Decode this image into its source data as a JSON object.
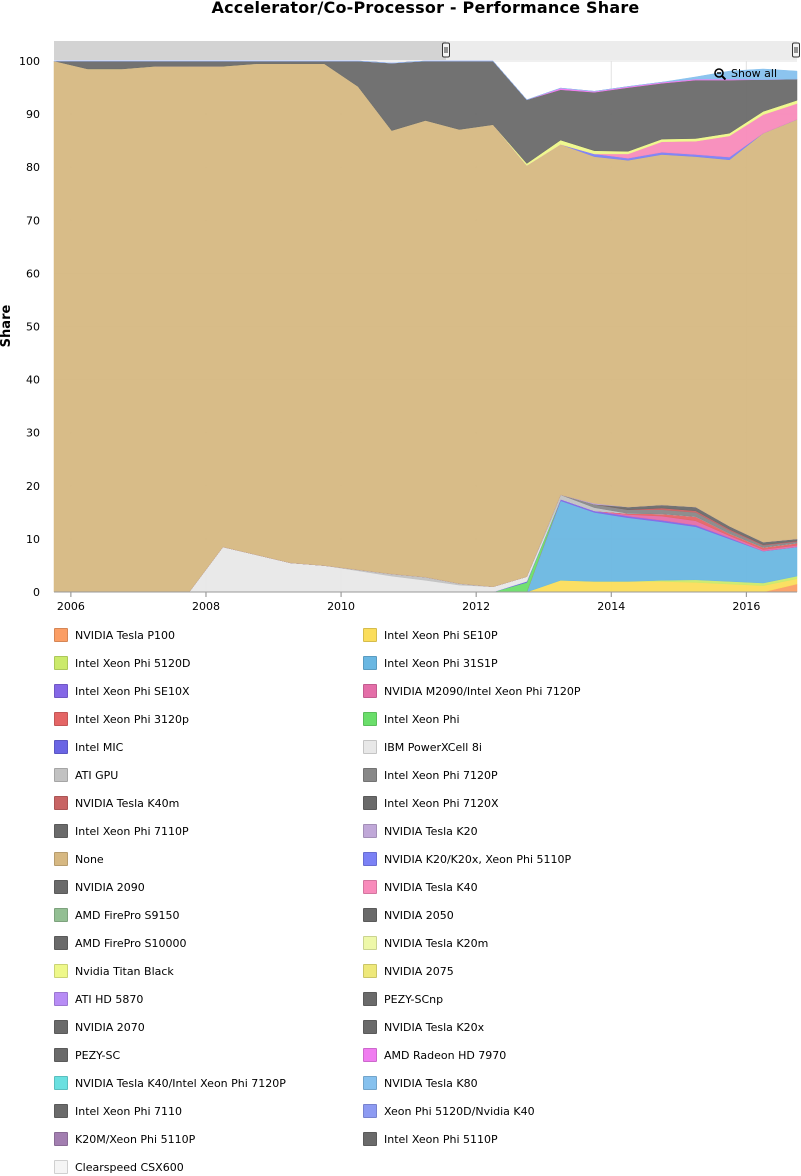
{
  "zoom": {
    "show_all_label": "Show all"
  },
  "chart_data": {
    "type": "area",
    "stacked": true,
    "title": "Accelerator/Co-Processor - Performance Share",
    "ylabel": "Share",
    "xlabel": "",
    "ylim": [
      0,
      100
    ],
    "xlim": [
      2005.75,
      2016.75
    ],
    "yticks": [
      0,
      10,
      20,
      30,
      40,
      50,
      60,
      70,
      80,
      90,
      100
    ],
    "xticks": [
      2006,
      2008,
      2010,
      2012,
      2014,
      2016
    ],
    "grid": true,
    "legend_position": "bottom",
    "x": [
      2005.75,
      2006.25,
      2006.75,
      2007.25,
      2007.75,
      2008.25,
      2008.75,
      2009.25,
      2009.75,
      2010.25,
      2010.75,
      2011.25,
      2011.75,
      2012.25,
      2012.75,
      2013.25,
      2013.75,
      2014.25,
      2014.75,
      2015.25,
      2015.75,
      2016.25,
      2016.75
    ],
    "series": [
      {
        "name": "NVIDIA Tesla P100",
        "color": "#fb9e65",
        "values": [
          0,
          0,
          0,
          0,
          0,
          0,
          0,
          0,
          0,
          0,
          0,
          0,
          0,
          0,
          0,
          0,
          0,
          0,
          0,
          0,
          0,
          0,
          1.5
        ]
      },
      {
        "name": "Intel Xeon Phi SE10P",
        "color": "#fbdd5b",
        "values": [
          0,
          0,
          0,
          0,
          0,
          0,
          0,
          0,
          0,
          0,
          0,
          0,
          0,
          0,
          0,
          2.2,
          2.0,
          2.0,
          2.0,
          1.8,
          1.5,
          1.2,
          1.0
        ]
      },
      {
        "name": "Intel Xeon Phi 5120D",
        "color": "#cbea6b",
        "values": [
          0,
          0,
          0,
          0,
          0,
          0,
          0,
          0,
          0,
          0,
          0,
          0,
          0,
          0,
          0,
          0,
          0,
          0,
          0.2,
          0.5,
          0.5,
          0.5,
          0.5
        ]
      },
      {
        "name": "Intel Xeon Phi 31S1P",
        "color": "#6ab7e2",
        "values": [
          0,
          0,
          0,
          0,
          0,
          0,
          0,
          0,
          0,
          0,
          0,
          0,
          0,
          0,
          0,
          15,
          13,
          12,
          11,
          10,
          8,
          6,
          5.5
        ]
      },
      {
        "name": "Intel Xeon Phi SE10X",
        "color": "#8467e6",
        "values": [
          0,
          0,
          0,
          0,
          0,
          0,
          0,
          0,
          0,
          0,
          0,
          0,
          0,
          0,
          0,
          0.3,
          0.3,
          0.3,
          0.3,
          0.3,
          0.2,
          0,
          0
        ]
      },
      {
        "name": "NVIDIA M2090/Intel Xeon Phi 7120P",
        "color": "#e46ea8",
        "values": [
          0,
          0,
          0,
          0,
          0,
          0,
          0,
          0,
          0,
          0,
          0,
          0,
          0,
          0,
          0,
          0,
          0,
          0.3,
          0.8,
          0.8,
          0.4,
          0.3,
          0.3
        ]
      },
      {
        "name": "Intel Xeon Phi 3120p",
        "color": "#e46565",
        "values": [
          0,
          0,
          0,
          0,
          0,
          0,
          0,
          0,
          0,
          0,
          0,
          0,
          0,
          0,
          0,
          0,
          0,
          0.2,
          0.4,
          0.8,
          0.4,
          0.4,
          0.4
        ]
      },
      {
        "name": "Intel Xeon Phi",
        "color": "#6ade6a",
        "values": [
          0,
          0,
          0,
          0,
          0,
          0,
          0,
          0,
          0,
          0,
          0,
          0,
          0,
          0,
          1.8,
          0,
          0,
          0,
          0,
          0,
          0,
          0,
          0
        ]
      },
      {
        "name": "Intel MIC",
        "color": "#6a65e4",
        "values": [
          0,
          0,
          0,
          0,
          0,
          0,
          0,
          0,
          0,
          0,
          0,
          0,
          0,
          0,
          0.2,
          0,
          0,
          0,
          0,
          0,
          0,
          0,
          0
        ]
      },
      {
        "name": "IBM PowerXCell 8i",
        "color": "#e8e8e8",
        "values": [
          0,
          0,
          0,
          0,
          0,
          8.5,
          7,
          5.5,
          5,
          4,
          3,
          2.2,
          1.3,
          1,
          0.9,
          0,
          0,
          0,
          0,
          0,
          0,
          0,
          0
        ]
      },
      {
        "name": "ATI GPU",
        "color": "#c2c2c2",
        "values": [
          0,
          0,
          0,
          0,
          0,
          0,
          0,
          0,
          0,
          0.2,
          0.4,
          0.6,
          0.3,
          0,
          0,
          0.8,
          0.6,
          0,
          0,
          0,
          0,
          0,
          0
        ]
      },
      {
        "name": "Intel Xeon Phi 7120P",
        "color": "#888888",
        "values": [
          0,
          0,
          0,
          0,
          0,
          0,
          0,
          0,
          0,
          0,
          0,
          0,
          0,
          0,
          0,
          0,
          0.6,
          0.7,
          0.8,
          0.8,
          0.6,
          0.4,
          0.3
        ]
      },
      {
        "name": "NVIDIA Tesla K40m",
        "color": "#c86464",
        "values": [
          0,
          0,
          0,
          0,
          0,
          0,
          0,
          0,
          0,
          0,
          0,
          0,
          0,
          0,
          0,
          0,
          0,
          0,
          0.3,
          0.3,
          0.2,
          0.1,
          0.1
        ]
      },
      {
        "name": "Intel Xeon Phi 7120X",
        "color": "#6a6a6a",
        "values": [
          0,
          0,
          0,
          0,
          0,
          0,
          0,
          0,
          0,
          0,
          0,
          0,
          0,
          0,
          0,
          0,
          0,
          0.5,
          0.6,
          0.7,
          0.6,
          0.5,
          0.4
        ]
      },
      {
        "name": "NVIDIA Tesla K20",
        "color": "#c0a8d8",
        "values": [
          0,
          0,
          0,
          0,
          0,
          0,
          0,
          0,
          0,
          0,
          0,
          0,
          0,
          0,
          0,
          0,
          0.2,
          0,
          0,
          0,
          0,
          0,
          0
        ]
      },
      {
        "name": "Intel Xeon Phi 7110P",
        "color": "#6a6a6a",
        "values": [
          0,
          0,
          0,
          0,
          0,
          0,
          0,
          0,
          0,
          0,
          0,
          0,
          0,
          0,
          0,
          0,
          0,
          0,
          0,
          0,
          0,
          0,
          0
        ]
      },
      {
        "name": "None",
        "color": "#d6b882",
        "values": [
          100,
          98.5,
          98.5,
          99,
          99,
          90.5,
          92.5,
          94,
          94.5,
          91,
          83.5,
          86,
          85.5,
          87,
          77.4,
          66,
          65.3,
          65.3,
          66,
          66,
          69,
          77,
          79
        ]
      },
      {
        "name": "NVIDIA K20/K20x, Xeon Phi 5110P",
        "color": "#7b81f5",
        "values": [
          0,
          0,
          0,
          0,
          0,
          0,
          0,
          0,
          0,
          0,
          0,
          0,
          0,
          0,
          0,
          0,
          0.5,
          0.4,
          0.4,
          0.4,
          0.5,
          0,
          0
        ]
      },
      {
        "name": "NVIDIA Tesla K40",
        "color": "#f88bbb",
        "values": [
          0,
          0,
          0,
          0,
          0,
          0,
          0,
          0,
          0,
          0,
          0,
          0,
          0,
          0,
          0,
          0,
          0,
          0.8,
          2.0,
          2.5,
          4.0,
          3.5,
          3.0
        ]
      },
      {
        "name": "NVIDIA 2090",
        "color": "#6a6a6a",
        "values": [
          0,
          0,
          0,
          0,
          0,
          0,
          0,
          0,
          0,
          0,
          0,
          0,
          0,
          0,
          0,
          0,
          0,
          0,
          0,
          0,
          0,
          0,
          0
        ]
      },
      {
        "name": "NVIDIA 2050",
        "color": "#6a6a6a",
        "values": [
          0,
          0,
          0,
          0,
          0,
          0,
          0,
          0,
          0,
          0,
          0,
          0,
          0,
          0,
          0,
          0,
          0,
          0,
          0,
          0,
          0,
          0,
          0
        ]
      },
      {
        "name": "AMD FirePro S9150",
        "color": "#93bf93",
        "values": [
          0,
          0,
          0,
          0,
          0,
          0,
          0,
          0,
          0,
          0,
          0,
          0,
          0,
          0,
          0,
          0,
          0,
          0,
          0,
          0,
          0,
          0,
          0
        ]
      },
      {
        "name": "NVIDIA Tesla K20m",
        "color": "#eef8aa",
        "values": [
          0,
          0,
          0,
          0,
          0,
          0,
          0,
          0,
          0,
          0,
          0,
          0,
          0,
          0,
          0,
          0,
          0,
          0,
          0,
          0,
          0,
          0,
          0
        ]
      },
      {
        "name": "AMD FirePro S10000",
        "color": "#6a6a6a",
        "values": [
          0,
          0,
          0,
          0,
          0,
          0,
          0,
          0,
          0,
          0,
          0,
          0,
          0,
          0,
          0,
          0,
          0,
          0,
          0,
          0,
          0,
          0,
          0
        ]
      },
      {
        "name": "NVIDIA 2075",
        "color": "#eee87a",
        "values": [
          0,
          0,
          0,
          0,
          0,
          0,
          0,
          0,
          0,
          0,
          0,
          0,
          0,
          0,
          0,
          0,
          0,
          0,
          0,
          0,
          0,
          0,
          0
        ]
      },
      {
        "name": "Nvidia Titan Black",
        "color": "#eef88a",
        "values": [
          0,
          0,
          0,
          0,
          0,
          0,
          0,
          0,
          0,
          0,
          0,
          0,
          0,
          0,
          0.4,
          0.8,
          0.6,
          0.5,
          0.5,
          0.5,
          0.5,
          0.6,
          0.6
        ]
      },
      {
        "name": "PEZY-SCnp",
        "color": "#6a6a6a",
        "values": [
          0,
          0,
          0,
          0,
          0,
          0,
          0,
          0,
          0,
          0,
          0,
          0,
          0,
          0,
          0,
          0,
          0,
          0,
          0,
          0,
          0,
          0,
          0
        ]
      },
      {
        "name": "ATI HD 5870",
        "color": "#b78cf5",
        "values": [
          0,
          0,
          0,
          0,
          0,
          0,
          0,
          0,
          0,
          0,
          0,
          0,
          0,
          0,
          0,
          0,
          0,
          0,
          0,
          0,
          0,
          0,
          0
        ]
      },
      {
        "name": "NVIDIA Tesla K20x",
        "color": "#6a6a6a",
        "values": [
          0,
          0,
          0,
          0,
          0,
          0,
          0,
          0,
          0,
          0,
          0,
          0,
          0,
          0,
          0,
          0,
          0,
          0,
          0,
          0,
          0,
          0,
          0
        ]
      },
      {
        "name": "NVIDIA 2070",
        "color": "#6a6a6a",
        "values": [
          0,
          1.5,
          1.5,
          1,
          1,
          1,
          0.5,
          0.5,
          0.5,
          4.8,
          12.7,
          11.2,
          12.9,
          12,
          12,
          9.5,
          11,
          12,
          10.5,
          11,
          10,
          6,
          4
        ]
      },
      {
        "name": "AMD Radeon HD 7970",
        "color": "#f07cf0",
        "values": [
          0,
          0,
          0,
          0,
          0,
          0,
          0,
          0,
          0,
          0,
          0,
          0,
          0,
          0,
          0,
          0.3,
          0.2,
          0.2,
          0.2,
          0.2,
          0.2,
          0,
          0
        ]
      },
      {
        "name": "PEZY-SC",
        "color": "#6a6a6a",
        "values": [
          0,
          0,
          0,
          0,
          0,
          0,
          0,
          0,
          0,
          0,
          0,
          0,
          0,
          0,
          0,
          0,
          0,
          0,
          0,
          0,
          0,
          0,
          0
        ]
      },
      {
        "name": "NVIDIA Tesla K80",
        "color": "#86c1ee",
        "values": [
          0,
          0,
          0,
          0,
          0,
          0,
          0,
          0,
          0,
          0,
          0,
          0,
          0,
          0,
          0,
          0,
          0,
          0,
          0,
          0.4,
          1.5,
          2,
          1.5
        ]
      },
      {
        "name": "NVIDIA Tesla K40/Intel Xeon Phi 7120P",
        "color": "#6ae0e0",
        "values": [
          0,
          0,
          0,
          0,
          0,
          0,
          0,
          0,
          0,
          0,
          0,
          0,
          0,
          0,
          0,
          0,
          0,
          0,
          0,
          0,
          0,
          0,
          0
        ]
      },
      {
        "name": "Xeon Phi 5120D/Nvidia K40",
        "color": "#8d9bf2",
        "values": [
          0,
          0,
          0,
          0,
          0,
          0,
          0,
          0,
          0,
          0,
          0,
          0,
          0,
          0,
          0,
          0,
          0,
          0,
          0,
          0,
          0,
          0,
          0
        ]
      },
      {
        "name": "Intel Xeon Phi 7110",
        "color": "#6a6a6a",
        "values": [
          0,
          0,
          0,
          0,
          0,
          0,
          0,
          0,
          0,
          0,
          0,
          0,
          0,
          0,
          0,
          0,
          0,
          0,
          0,
          0,
          0,
          0,
          0
        ]
      },
      {
        "name": "Intel Xeon Phi 5110P",
        "color": "#6a6a6a",
        "values": [
          0,
          0,
          0,
          0,
          0,
          0,
          0,
          0,
          0,
          0,
          0,
          0,
          0,
          0,
          0,
          0,
          0,
          0,
          0,
          0,
          0,
          0,
          0
        ]
      },
      {
        "name": "K20M/Xeon Phi 5110P",
        "color": "#a27eb0",
        "values": [
          0,
          0,
          0,
          0,
          0,
          0,
          0,
          0,
          0,
          0,
          0,
          0,
          0,
          0,
          0,
          0,
          0,
          0,
          0,
          0,
          0,
          0,
          0
        ]
      },
      {
        "name": "Clearspeed CSX600",
        "color": "#f5f5f5",
        "values": [
          0,
          0,
          0,
          0,
          0,
          0,
          0,
          0,
          0,
          0,
          0,
          0,
          0,
          0,
          0,
          0,
          0,
          0,
          0,
          0,
          0,
          0,
          0
        ]
      }
    ],
    "legend_order": [
      "NVIDIA Tesla P100",
      "Intel Xeon Phi SE10P",
      "Intel Xeon Phi 5120D",
      "Intel Xeon Phi 31S1P",
      "Intel Xeon Phi SE10X",
      "NVIDIA M2090/Intel Xeon Phi 7120P",
      "Intel Xeon Phi 3120p",
      "Intel Xeon Phi",
      "Intel MIC",
      "IBM PowerXCell 8i",
      "ATI GPU",
      "Intel Xeon Phi 7120P",
      "NVIDIA Tesla K40m",
      "Intel Xeon Phi 7120X",
      "Intel Xeon Phi 7110P",
      "NVIDIA Tesla K20",
      "None",
      "NVIDIA K20/K20x, Xeon Phi 5110P",
      "NVIDIA 2090",
      "NVIDIA Tesla K40",
      "AMD FirePro S9150",
      "NVIDIA 2050",
      "AMD FirePro S10000",
      "NVIDIA Tesla K20m",
      "Nvidia Titan Black",
      "NVIDIA 2075",
      "ATI HD 5870",
      "PEZY-SCnp",
      "NVIDIA 2070",
      "NVIDIA Tesla K20x",
      "PEZY-SC",
      "AMD Radeon HD 7970",
      "NVIDIA Tesla K40/Intel Xeon Phi 7120P",
      "NVIDIA Tesla K80",
      "Intel Xeon Phi 7110",
      "Xeon Phi 5120D/Nvidia K40",
      "K20M/Xeon Phi 5110P",
      "Intel Xeon Phi 5110P",
      "Clearspeed CSX600"
    ]
  }
}
